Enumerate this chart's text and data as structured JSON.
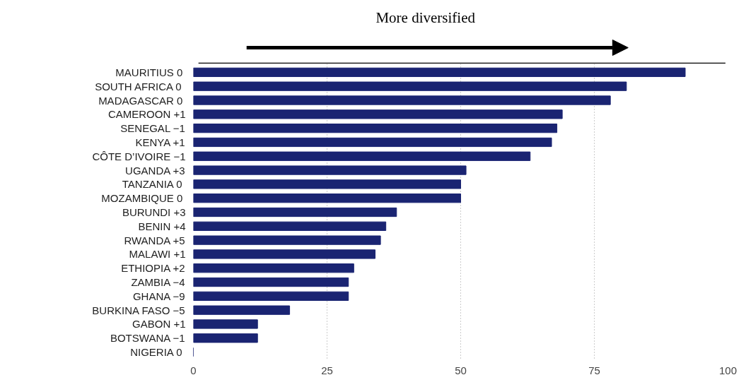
{
  "chart_data": {
    "type": "bar",
    "orientation": "horizontal",
    "annotations": [
      "More diversified"
    ],
    "categories": [
      "MAURITIUS  0",
      "SOUTH AFRICA  0",
      "MADAGASCAR  0",
      "CAMEROON +1",
      "SENEGAL −1",
      "KENYA +1",
      "CÔTE D’IVOIRE −1",
      "UGANDA +3",
      "TANZANIA  0",
      "MOZAMBIQUE  0",
      "BURUNDI +3",
      "BENIN +4",
      "RWANDA +5",
      "MALAWI +1",
      "ETHIOPIA +2",
      "ZAMBIA −4",
      "GHANA −9",
      "BURKINA FASO −5",
      "GABON +1",
      "BOTSWANA −1",
      "NIGERIA  0"
    ],
    "values": [
      92,
      81,
      78,
      69,
      68,
      67,
      63,
      51,
      50,
      50,
      38,
      36,
      35,
      34,
      30,
      29,
      29,
      18,
      12,
      12,
      0
    ],
    "color": "#1a2472",
    "xlim": [
      0,
      100
    ],
    "xticks": [
      0,
      25,
      50,
      75,
      100
    ],
    "grid": "x"
  }
}
